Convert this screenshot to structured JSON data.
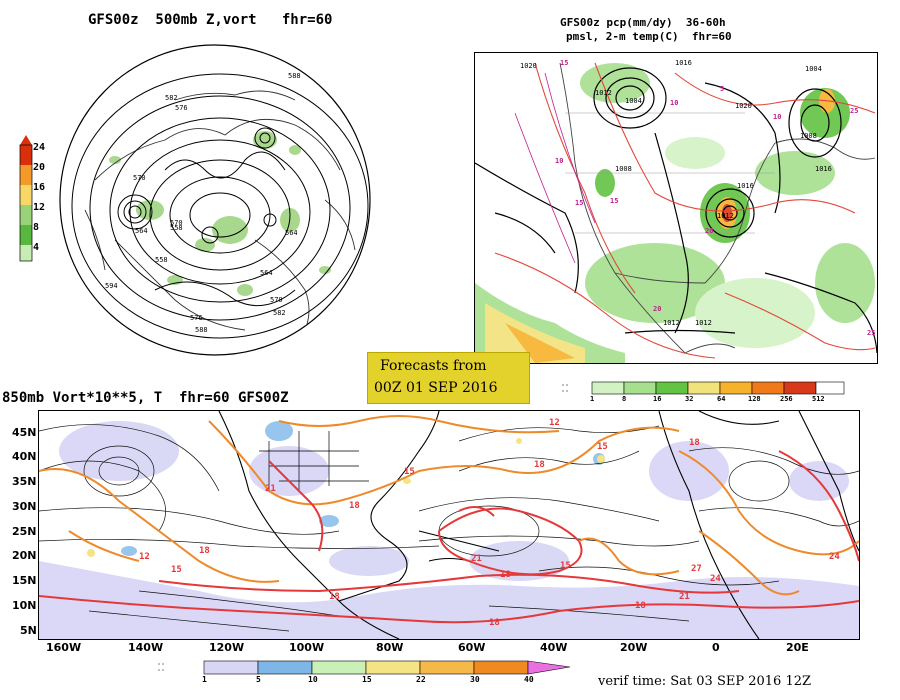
{
  "panel_top_left": {
    "title": "GFS00z  500mb Z,vort   fhr=60",
    "contour_labels": [
      "582",
      "576",
      "570",
      "588",
      "564",
      "558",
      "594",
      "570",
      "564",
      "588",
      "582",
      "576",
      "558",
      "570",
      "564"
    ],
    "colorbar": {
      "ticks": [
        "24",
        "20",
        "16",
        "12",
        "8",
        "4"
      ],
      "colors": [
        "#d9300b",
        "#f39a2a",
        "#f7d765",
        "#9ad27a",
        "#58b73f",
        "#c9ecb4"
      ]
    }
  },
  "panel_top_right": {
    "title_line1": "GFS00z pcp(mm/dy)  36-60h",
    "title_line2": "pmsl, 2-m temp(C)  fhr=60",
    "isobar_labels": [
      "1020",
      "1012",
      "1004",
      "1016",
      "1020",
      "1008",
      "1012",
      "1016",
      "1012",
      "1016",
      "1012",
      "1008",
      "1004"
    ],
    "temp_labels": [
      "15",
      "10",
      "5",
      "10",
      "15",
      "20",
      "25",
      "15",
      "10",
      "20",
      "25"
    ],
    "colorbar": {
      "ticks": [
        "1",
        "8",
        "16",
        "32",
        "64",
        "128",
        "256",
        "512"
      ],
      "colors": [
        "#d2f2c4",
        "#a6df8d",
        "#63c342",
        "#f2e27b",
        "#f7b22c",
        "#f07a1a",
        "#d8391b",
        "#ffffff"
      ]
    }
  },
  "badge": {
    "line1": "Forecasts from",
    "line2": "00Z 01 SEP 2016"
  },
  "panel_bottom": {
    "title": "850mb Vort*10**5, T  fhr=60 GFS00Z",
    "lat_labels": [
      "45N",
      "40N",
      "35N",
      "30N",
      "25N",
      "20N",
      "15N",
      "10N",
      "5N"
    ],
    "lon_labels": [
      "160W",
      "140W",
      "120W",
      "100W",
      "80W",
      "60W",
      "40W",
      "20W",
      "0",
      "20E"
    ],
    "temp_labels": [
      "15",
      "18",
      "21",
      "15",
      "18",
      "12",
      "15",
      "18",
      "18",
      "21",
      "18",
      "15",
      "18",
      "18",
      "21",
      "24",
      "27",
      "24",
      "18",
      "12"
    ],
    "colorbar": {
      "ticks": [
        "1",
        "5",
        "10",
        "15",
        "22",
        "30",
        "40"
      ],
      "colors": [
        "#d8d6f5",
        "#7eb6e8",
        "#c9f0b6",
        "#f4e483",
        "#f5b94a",
        "#f08a20",
        "#ea6fe0"
      ]
    },
    "verif": "verif time: Sat 03 SEP 2016 12Z"
  }
}
